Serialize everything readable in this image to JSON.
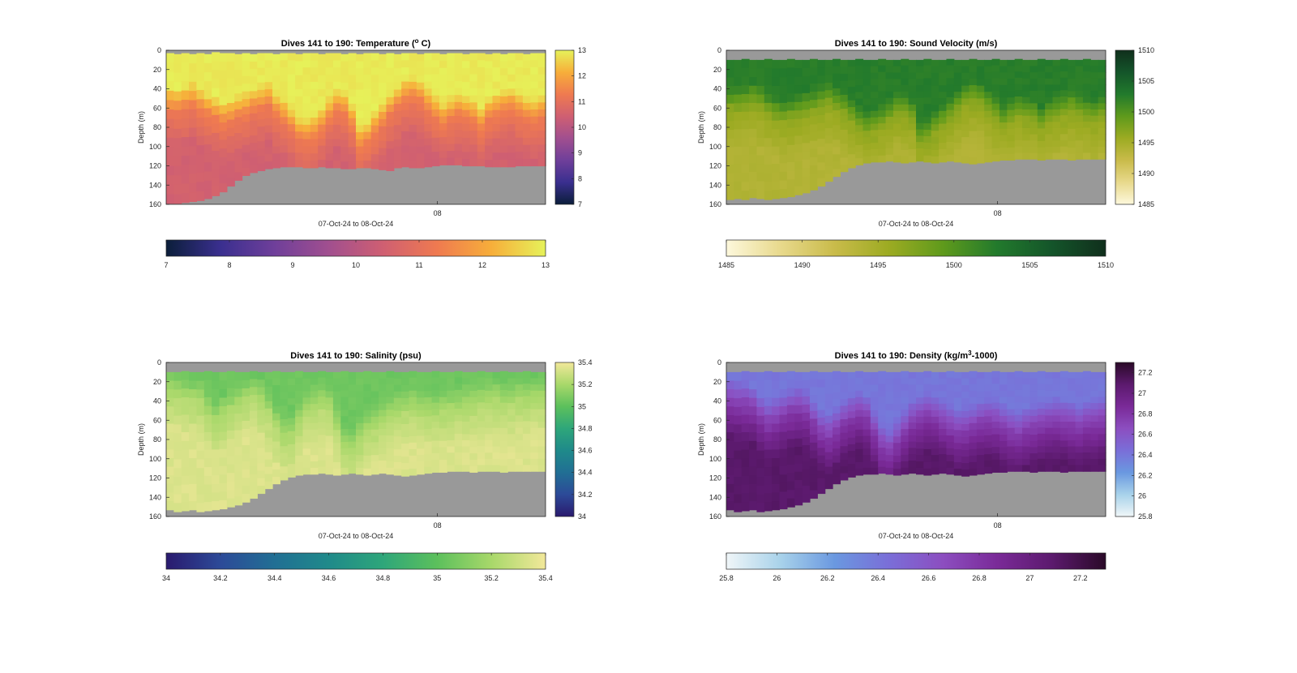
{
  "chart_data": [
    {
      "type": "heatmap",
      "title_prefix": "Dives 141 to 190: Temperature (",
      "title_super": "o",
      "title_suffix": " C)",
      "ylabel": "Depth (m)",
      "xlabel": "07-Oct-24 to 08-Oct-24",
      "ylim": [
        0,
        160
      ],
      "y_ticks": [
        "0",
        "20",
        "40",
        "60",
        "80",
        "100",
        "120",
        "140",
        "160"
      ],
      "x_ticks": [
        "08"
      ],
      "x_tick_position": 0.715,
      "clim": [
        7,
        13
      ],
      "colormap": [
        "#0b1e3a",
        "#3a2f8f",
        "#6f3f9a",
        "#a14f8f",
        "#cf5f72",
        "#ef7a50",
        "#f7ae3a",
        "#e6f25a"
      ],
      "colorbar_ticks": [
        "7",
        "8",
        "9",
        "10",
        "11",
        "12",
        "13"
      ],
      "bottom_depth": [
        159,
        159,
        158,
        157,
        156,
        154,
        151,
        147,
        141,
        135,
        130,
        127,
        125,
        123,
        122,
        121,
        121,
        121,
        122,
        122,
        121,
        122,
        122,
        123,
        123,
        122,
        122,
        123,
        124,
        125,
        122,
        121,
        122,
        122,
        121,
        120,
        119,
        119,
        119,
        120,
        120,
        120,
        121,
        121,
        121,
        121,
        120,
        120,
        120,
        120
      ],
      "top_gap": [
        3,
        4,
        3,
        4,
        3,
        4,
        2,
        3,
        3,
        4,
        3,
        4,
        3,
        3,
        4,
        3,
        3,
        4,
        3,
        3,
        4,
        3,
        3,
        4,
        3,
        4,
        3,
        3,
        4,
        3,
        4,
        3,
        3,
        4,
        3,
        3,
        4,
        3,
        3,
        4,
        3,
        3,
        4,
        3,
        4,
        3,
        3,
        4,
        3,
        3
      ],
      "surface_value": 12.9,
      "upper_layer_depth": [
        50,
        52,
        48,
        45,
        50,
        55,
        60,
        65,
        62,
        58,
        55,
        50,
        48,
        45,
        55,
        62,
        70,
        80,
        82,
        78,
        70,
        60,
        52,
        55,
        68,
        90,
        85,
        75,
        65,
        55,
        48,
        40,
        38,
        42,
        50,
        58,
        65,
        60,
        55,
        58,
        62,
        70,
        60,
        55,
        52,
        50,
        55,
        60,
        62,
        58
      ],
      "upper_layer_value": 11.3,
      "deep_value": 10.5
    },
    {
      "type": "heatmap",
      "title": "Dives 141 to 190: Sound Velocity (m/s)",
      "ylabel": "Depth (m)",
      "xlabel": "07-Oct-24 to 08-Oct-24",
      "ylim": [
        0,
        160
      ],
      "y_ticks": [
        "0",
        "20",
        "40",
        "60",
        "80",
        "100",
        "120",
        "140",
        "160"
      ],
      "x_ticks": [
        "08"
      ],
      "x_tick_position": 0.715,
      "clim": [
        1485,
        1510
      ],
      "colormap": [
        "#fdf8dc",
        "#e8d98c",
        "#c9bb4a",
        "#9cab22",
        "#5f9a1c",
        "#227a2c",
        "#14552a",
        "#102f1c"
      ],
      "colorbar_ticks": [
        "1485",
        "1490",
        "1495",
        "1500",
        "1505",
        "1510"
      ],
      "bottom_depth": [
        155,
        154,
        155,
        153,
        154,
        155,
        154,
        153,
        152,
        150,
        148,
        145,
        141,
        136,
        131,
        126,
        122,
        119,
        117,
        116,
        116,
        115,
        116,
        117,
        116,
        115,
        116,
        117,
        116,
        115,
        116,
        117,
        118,
        117,
        116,
        115,
        114,
        114,
        113,
        113,
        113,
        114,
        113,
        113,
        113,
        114,
        113,
        113,
        113,
        113
      ],
      "top_gap": [
        10,
        10,
        9,
        10,
        10,
        9,
        10,
        10,
        9,
        10,
        10,
        9,
        10,
        10,
        9,
        10,
        10,
        9,
        10,
        10,
        9,
        10,
        10,
        9,
        10,
        10,
        9,
        10,
        10,
        9,
        10,
        10,
        9,
        10,
        10,
        9,
        10,
        10,
        9,
        10,
        10,
        9,
        10,
        10,
        9,
        10,
        10,
        9,
        10,
        10
      ],
      "surface_value": 1502.5,
      "upper_layer_depth": [
        50,
        50,
        48,
        45,
        48,
        55,
        60,
        62,
        60,
        58,
        55,
        52,
        48,
        45,
        50,
        55,
        62,
        70,
        75,
        72,
        68,
        62,
        55,
        55,
        62,
        85,
        82,
        75,
        68,
        60,
        52,
        45,
        42,
        45,
        52,
        60,
        68,
        62,
        58,
        60,
        62,
        70,
        62,
        58,
        55,
        52,
        56,
        60,
        62,
        58
      ],
      "upper_layer_value": 1496.5,
      "deep_value": 1494
    },
    {
      "type": "heatmap",
      "title": "Dives 141 to 190: Salinity (psu)",
      "ylabel": "Depth (m)",
      "xlabel": "07-Oct-24 to 08-Oct-24",
      "ylim": [
        0,
        160
      ],
      "y_ticks": [
        "0",
        "20",
        "40",
        "60",
        "80",
        "100",
        "120",
        "140",
        "160"
      ],
      "x_ticks": [
        "08"
      ],
      "x_tick_position": 0.715,
      "clim": [
        34,
        35.4
      ],
      "colormap": [
        "#2a1a6e",
        "#2c4a98",
        "#216f94",
        "#1f8a8a",
        "#2ea67a",
        "#5cc05c",
        "#a8d86a",
        "#f2e89a"
      ],
      "colorbar_ticks": [
        "34",
        "34.2",
        "34.4",
        "34.6",
        "34.8",
        "35",
        "35.2",
        "35.4"
      ],
      "bottom_depth": [
        153,
        155,
        154,
        153,
        155,
        154,
        153,
        152,
        150,
        148,
        145,
        141,
        136,
        131,
        126,
        122,
        119,
        117,
        116,
        116,
        115,
        116,
        117,
        116,
        115,
        116,
        117,
        116,
        115,
        116,
        117,
        118,
        117,
        116,
        115,
        114,
        114,
        113,
        113,
        113,
        114,
        113,
        113,
        113,
        114,
        113,
        113,
        113,
        113,
        113
      ],
      "top_gap": [
        10,
        10,
        9,
        10,
        10,
        9,
        10,
        10,
        9,
        10,
        10,
        9,
        10,
        10,
        9,
        10,
        10,
        9,
        10,
        10,
        9,
        10,
        10,
        9,
        10,
        10,
        9,
        10,
        10,
        9,
        10,
        10,
        9,
        10,
        10,
        9,
        10,
        10,
        9,
        10,
        10,
        9,
        10,
        10,
        9,
        10,
        10,
        9,
        10,
        10
      ],
      "surface_value": 35.05,
      "upper_layer_depth": [
        20,
        22,
        25,
        28,
        30,
        40,
        50,
        45,
        38,
        32,
        28,
        26,
        30,
        40,
        55,
        68,
        65,
        50,
        40,
        35,
        30,
        35,
        55,
        75,
        80,
        70,
        60,
        55,
        50,
        45,
        40,
        38,
        36,
        38,
        40,
        42,
        40,
        38,
        36,
        34,
        32,
        30,
        28,
        28,
        30,
        30,
        28,
        28,
        26,
        25
      ],
      "upper_layer_value": 35.22,
      "deep_value": 35.34
    },
    {
      "type": "heatmap",
      "title_prefix": "Dives 141 to 190: Density (kg/m",
      "title_super": "3",
      "title_suffix": "-1000)",
      "ylabel": "Depth (m)",
      "xlabel": "07-Oct-24 to 08-Oct-24",
      "ylim": [
        0,
        160
      ],
      "y_ticks": [
        "0",
        "20",
        "40",
        "60",
        "80",
        "100",
        "120",
        "140",
        "160"
      ],
      "x_ticks": [
        "08"
      ],
      "x_tick_position": 0.715,
      "clim": [
        25.8,
        27.3
      ],
      "colormap": [
        "#f0f6f8",
        "#a8d2ea",
        "#6a98e0",
        "#7a6ed8",
        "#8c4ec0",
        "#7a2a98",
        "#5c1a6e",
        "#2a0a28"
      ],
      "colorbar_ticks": [
        "25.8",
        "26",
        "26.2",
        "26.4",
        "26.6",
        "26.8",
        "27",
        "27.2"
      ],
      "bottom_depth": [
        153,
        155,
        154,
        153,
        155,
        154,
        153,
        152,
        150,
        148,
        145,
        141,
        136,
        131,
        126,
        122,
        119,
        117,
        116,
        116,
        115,
        116,
        117,
        116,
        115,
        116,
        117,
        116,
        115,
        116,
        117,
        118,
        117,
        116,
        115,
        114,
        114,
        113,
        113,
        113,
        114,
        113,
        113,
        113,
        114,
        113,
        113,
        113,
        113,
        113
      ],
      "top_gap": [
        10,
        10,
        9,
        10,
        10,
        9,
        10,
        10,
        9,
        10,
        10,
        9,
        10,
        10,
        9,
        10,
        10,
        9,
        10,
        10,
        9,
        10,
        10,
        9,
        10,
        10,
        9,
        10,
        10,
        9,
        10,
        10,
        9,
        10,
        10,
        9,
        10,
        10,
        9,
        10,
        10,
        9,
        10,
        10,
        9,
        10,
        10,
        9,
        10,
        10
      ],
      "surface_value": 26.4,
      "upper_layer_depth": [
        28,
        30,
        32,
        35,
        45,
        50,
        48,
        42,
        38,
        35,
        40,
        50,
        60,
        65,
        58,
        50,
        45,
        40,
        45,
        60,
        75,
        80,
        70,
        60,
        50,
        45,
        42,
        45,
        50,
        55,
        60,
        58,
        55,
        50,
        48,
        50,
        55,
        60,
        62,
        58,
        55,
        52,
        50,
        48,
        50,
        52,
        55,
        52,
        50,
        48
      ],
      "upper_layer_value": 26.75,
      "deep_value": 27.1
    }
  ],
  "colors": {
    "seafloor": "#999999",
    "axis": "#262626"
  }
}
